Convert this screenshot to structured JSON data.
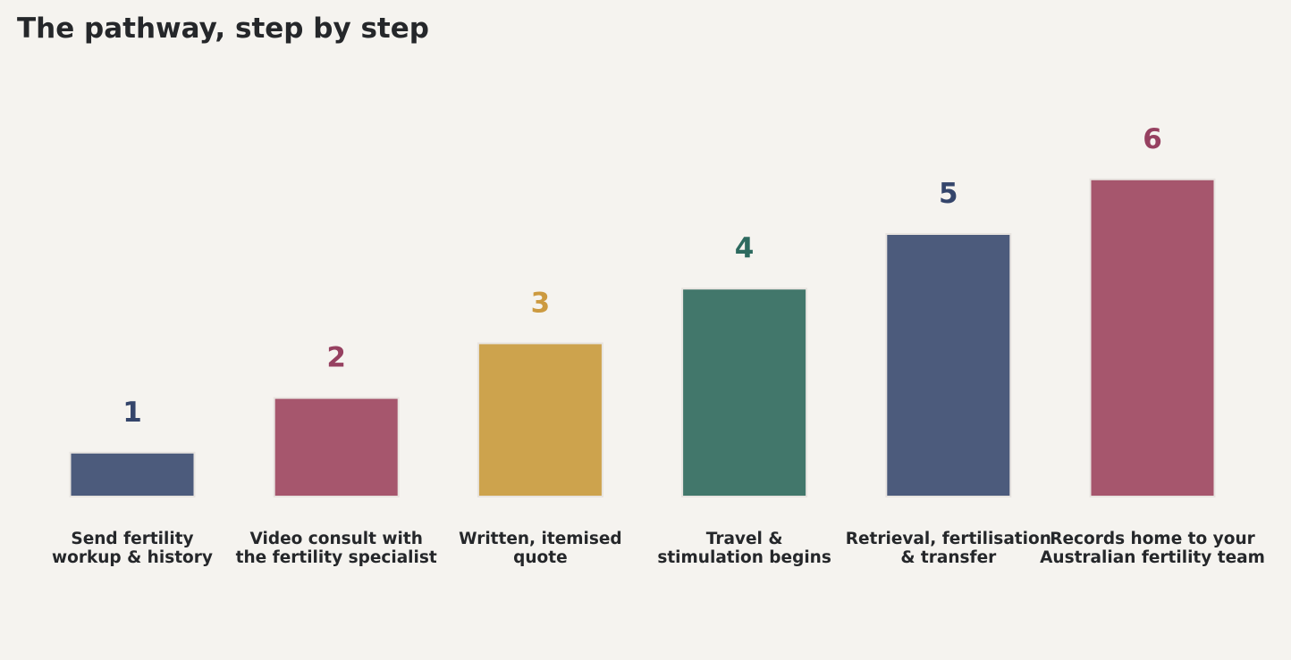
{
  "chart_data": {
    "type": "bar",
    "title": "The pathway, step by step",
    "xlabel": "",
    "ylabel": "",
    "categories": [
      "Send fertility\nworkup & history",
      "Video consult with\nthe fertility specialist",
      "Written, itemised\nquote",
      "Travel &\nstimulation begins",
      "Retrieval, fertilisation\n& transfer",
      "Records home to your\nAustralian fertility team"
    ],
    "values": [
      1,
      2,
      3,
      4,
      5,
      6
    ],
    "data_labels": [
      "1",
      "2",
      "3",
      "4",
      "5",
      "6"
    ],
    "ylim": [
      0,
      7
    ],
    "grid": false,
    "legend": "none",
    "bar_colors": [
      "#4c5b7c",
      "#a6566d",
      "#cda34d",
      "#42776b",
      "#4c5b7c",
      "#a6566d"
    ],
    "label_colors": [
      "#34456b",
      "#964060",
      "#cc9a40",
      "#2d6a5f",
      "#34456b",
      "#964060"
    ],
    "bar_edge_color": "#e8e4e0",
    "background_color": "#f5f3ef",
    "text_color": "#25272a"
  }
}
